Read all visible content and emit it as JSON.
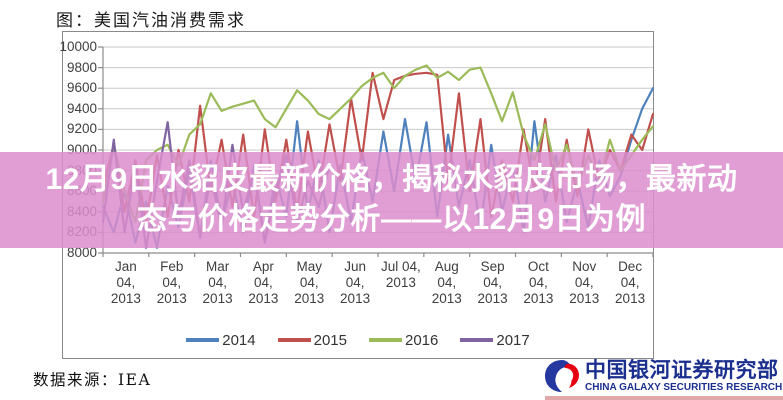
{
  "page": {
    "title": "图：美国汽油消费需求",
    "source_label": "数据来源：IEA"
  },
  "overlay": {
    "line1": "12月9日水貂皮最新价格，揭秘水貂皮市场，最新动",
    "line2": "态与价格走势分析——以12月9日为例",
    "bg_color": "#db8dcd",
    "text_color": "#ffffff"
  },
  "logo": {
    "cn": "中国银河证券研究部",
    "en": "CHINA GALAXY SECURITIES RESEARCH",
    "text_color": "#1b2f8f",
    "icon": "galaxy-swoosh-icon",
    "icon_blue": "#2438a0",
    "icon_red": "#e60012"
  },
  "chart_data": {
    "type": "line",
    "title": "图：美国汽油消费需求",
    "x_unit": "weekly observations, Jan 04 2013 – Dec 2013 axis labels",
    "x_tick_labels": [
      [
        "Jan",
        "04,",
        "2013"
      ],
      [
        "Feb",
        "04,",
        "2013"
      ],
      [
        "Mar",
        "04,",
        "2013"
      ],
      [
        "Apr",
        "04,",
        "2013"
      ],
      [
        "May",
        "04,",
        "2013"
      ],
      [
        "Jun",
        "04,",
        "2013"
      ],
      [
        "Jul 04,",
        "2013"
      ],
      [
        "Aug",
        "04,",
        "2013"
      ],
      [
        "Sep",
        "04,",
        "2013"
      ],
      [
        "Oct",
        "04,",
        "2013"
      ],
      [
        "Nov",
        "04,",
        "2013"
      ],
      [
        "Dec",
        "04,",
        "2013"
      ]
    ],
    "y_ticks": [
      10000,
      9800,
      9600,
      9400,
      9200,
      9000,
      8800,
      8600,
      8400,
      8200,
      8000
    ],
    "ylim": [
      8000,
      10000
    ],
    "grid": "horizontal",
    "legend_position": "bottom",
    "series": [
      {
        "name": "2014",
        "color": "#4f81bd",
        "values": [
          8450,
          8200,
          8600,
          8100,
          8500,
          8050,
          8650,
          8250,
          8800,
          8150,
          8900,
          8300,
          8700,
          8200,
          8850,
          8100,
          8750,
          8350,
          9280,
          8400,
          8900,
          8200,
          8850,
          8300,
          9000,
          8500,
          9180,
          8600,
          9300,
          8700,
          9270,
          8350,
          9150,
          8450,
          8900,
          8250,
          9050,
          8400,
          8850,
          8200,
          9280,
          8500,
          8950,
          8300,
          8700,
          8250,
          8900,
          8550,
          8750,
          9100,
          9400,
          9600
        ]
      },
      {
        "name": "2015",
        "color": "#c0504d",
        "values": [
          8650,
          9050,
          8400,
          8900,
          8300,
          8950,
          8350,
          9000,
          8500,
          9430,
          8600,
          9100,
          8450,
          9150,
          8350,
          9200,
          8500,
          9100,
          8400,
          9180,
          8600,
          9250,
          8700,
          9500,
          8900,
          9750,
          9300,
          9680,
          9720,
          9740,
          9750,
          9730,
          8700,
          9550,
          8600,
          9300,
          8350,
          8900,
          8500,
          9200,
          8600,
          9300,
          8500,
          9100,
          8550,
          9200,
          8700,
          9000,
          8800,
          9150,
          9000,
          9350
        ]
      },
      {
        "name": "2016",
        "color": "#9bbb59",
        "values": [
          8500,
          9050,
          8600,
          8300,
          8900,
          9000,
          9050,
          8850,
          9150,
          9250,
          9550,
          9380,
          9420,
          9450,
          9480,
          9300,
          9220,
          9400,
          9580,
          9480,
          9350,
          9300,
          9400,
          9500,
          9620,
          9700,
          9750,
          9600,
          9720,
          9780,
          9820,
          9700,
          9760,
          9680,
          9780,
          9800,
          9550,
          9280,
          9560,
          9150,
          8900,
          9250,
          8800,
          9050,
          8650,
          8950,
          8700,
          9100,
          8800,
          8950,
          9100,
          9230
        ]
      },
      {
        "name": "2017",
        "color": "#8064a2",
        "values": [
          8300,
          9100,
          8200,
          8850,
          8050,
          8700,
          9270,
          8350,
          8900,
          8150,
          8750,
          8250,
          9050,
          8400,
          8800,
          8100,
          8600,
          8950,
          8300,
          8700,
          8450,
          8850
        ]
      }
    ]
  }
}
